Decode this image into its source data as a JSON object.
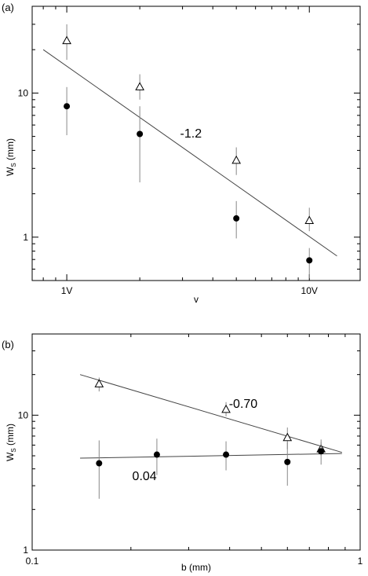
{
  "chart_data": [
    {
      "panel_label": "(a)",
      "type": "scatter",
      "xlabel": "v",
      "ylabel_main": "W",
      "ylabel_sub": "S",
      "ylabel_tail": " (mm)",
      "xscale": "log",
      "yscale": "log",
      "xlim": [
        0.72,
        16.2
      ],
      "ylim": [
        0.5,
        40
      ],
      "xticks": [
        {
          "value": 1,
          "label": "1V"
        },
        {
          "value": 10,
          "label": "10V"
        }
      ],
      "yticks": [
        {
          "value": 1,
          "label": "1"
        },
        {
          "value": 10,
          "label": "10"
        }
      ],
      "series": [
        {
          "marker": "triangle-open",
          "points": [
            {
              "x": 1,
              "y": 23,
              "err_lo": 17,
              "err_hi": 30
            },
            {
              "x": 2,
              "y": 11,
              "err_lo": 9,
              "err_hi": 13.5
            },
            {
              "x": 5,
              "y": 3.4,
              "err_lo": 2.7,
              "err_hi": 4.2
            },
            {
              "x": 10,
              "y": 1.3,
              "err_lo": 1.1,
              "err_hi": 1.6
            }
          ]
        },
        {
          "marker": "circle-filled",
          "points": [
            {
              "x": 1,
              "y": 8.1,
              "err_lo": 5.1,
              "err_hi": 11
            },
            {
              "x": 2,
              "y": 5.2,
              "err_lo": 2.4,
              "err_hi": 8.1
            },
            {
              "x": 5,
              "y": 1.35,
              "err_lo": 0.98,
              "err_hi": 1.78
            },
            {
              "x": 10,
              "y": 0.69,
              "err_lo": 0.52,
              "err_hi": 0.84
            }
          ]
        }
      ],
      "fit_lines": [
        {
          "x": [
            0.8,
            13
          ],
          "y": [
            20,
            0.74
          ],
          "label": "-1.2",
          "label_x": 3.25,
          "label_y": 4.9
        }
      ]
    },
    {
      "panel_label": "(b)",
      "type": "scatter",
      "xlabel": "b (mm)",
      "ylabel_main": "W",
      "ylabel_sub": "S",
      "ylabel_tail": " (mm)",
      "xscale": "log",
      "yscale": "log",
      "xlim": [
        0.1,
        1
      ],
      "ylim": [
        1,
        40
      ],
      "xticks": [
        {
          "value": 0.1,
          "label": "0.1"
        },
        {
          "value": 1,
          "label": "1"
        }
      ],
      "yticks": [
        {
          "value": 1,
          "label": "1"
        },
        {
          "value": 10,
          "label": "10"
        }
      ],
      "series": [
        {
          "marker": "triangle-open",
          "points": [
            {
              "x": 0.16,
              "y": 17,
              "err_lo": 15,
              "err_hi": 19
            },
            {
              "x": 0.39,
              "y": 11,
              "err_lo": 9.8,
              "err_hi": 12.5
            },
            {
              "x": 0.6,
              "y": 6.8,
              "err_lo": 5.6,
              "err_hi": 8.1
            },
            {
              "x": 0.76,
              "y": 5.6,
              "err_lo": 5.0,
              "err_hi": 6.3
            }
          ]
        },
        {
          "marker": "circle-filled",
          "points": [
            {
              "x": 0.16,
              "y": 4.4,
              "err_lo": 2.4,
              "err_hi": 6.5
            },
            {
              "x": 0.24,
              "y": 5.1,
              "err_lo": 3.6,
              "err_hi": 6.7
            },
            {
              "x": 0.39,
              "y": 5.1,
              "err_lo": 3.9,
              "err_hi": 6.4
            },
            {
              "x": 0.6,
              "y": 4.5,
              "err_lo": 3.0,
              "err_hi": 6.3
            },
            {
              "x": 0.76,
              "y": 5.4,
              "err_lo": 4.3,
              "err_hi": 6.6
            }
          ]
        }
      ],
      "fit_lines": [
        {
          "x": [
            0.14,
            0.88
          ],
          "y": [
            20,
            5.3
          ],
          "label": "-0.70",
          "label_x": 0.44,
          "label_y": 11.3
        },
        {
          "x": [
            0.14,
            0.88
          ],
          "y": [
            4.8,
            5.2
          ],
          "label": "0.04",
          "label_x": 0.22,
          "label_y": 3.3
        }
      ]
    }
  ]
}
